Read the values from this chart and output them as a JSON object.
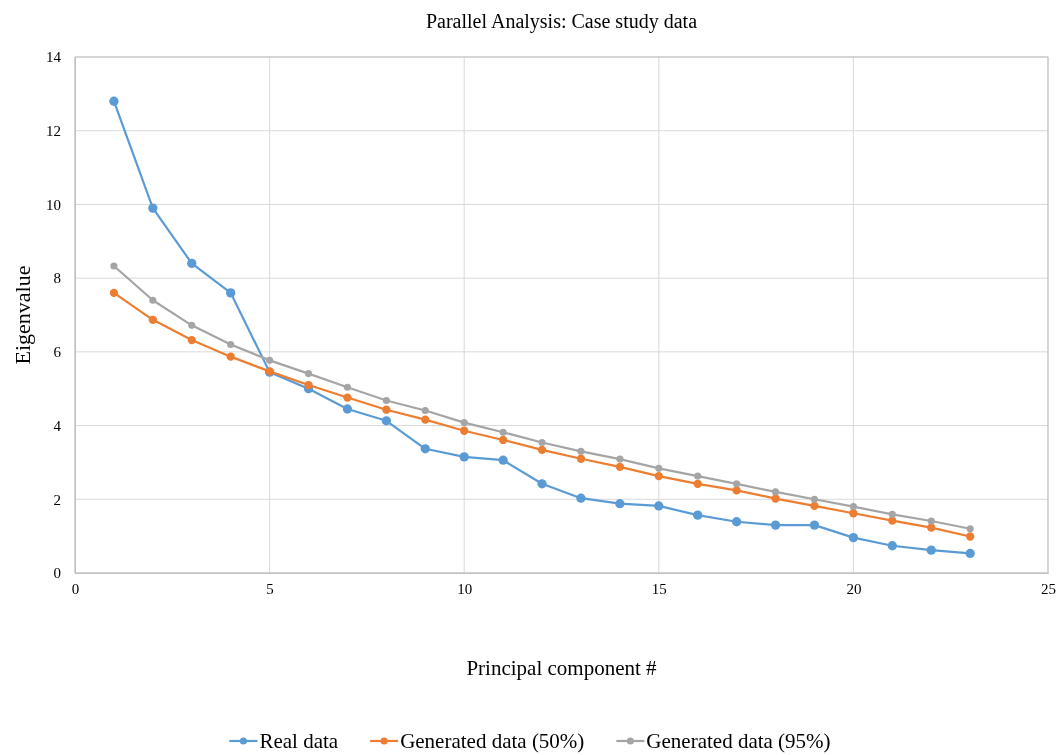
{
  "chart_data": {
    "type": "line",
    "title": "Parallel Analysis: Case study data",
    "xlabel": "Principal component #",
    "ylabel": "Eigenvalue",
    "x": [
      1,
      2,
      3,
      4,
      5,
      6,
      7,
      8,
      9,
      10,
      11,
      12,
      13,
      14,
      15,
      16,
      17,
      18,
      19,
      20,
      21,
      22,
      23
    ],
    "series": [
      {
        "name": "Real data",
        "color": "#5b9bd5",
        "values": [
          12.8,
          9.9,
          8.4,
          7.6,
          5.45,
          5.0,
          4.45,
          4.13,
          3.37,
          3.15,
          3.06,
          2.42,
          2.03,
          1.88,
          1.82,
          1.57,
          1.39,
          1.3,
          1.3,
          0.96,
          0.74,
          0.62,
          0.53
        ]
      },
      {
        "name": "Generated data (50%)",
        "color": "#ed7d31",
        "values": [
          7.6,
          6.87,
          6.32,
          5.87,
          5.47,
          5.1,
          4.76,
          4.43,
          4.16,
          3.86,
          3.61,
          3.34,
          3.1,
          2.88,
          2.63,
          2.42,
          2.24,
          2.02,
          1.82,
          1.62,
          1.42,
          1.23,
          0.99
        ]
      },
      {
        "name": "Generated data (95%)",
        "color": "#a5a5a5",
        "values": [
          8.33,
          7.4,
          6.72,
          6.2,
          5.77,
          5.41,
          5.04,
          4.68,
          4.41,
          4.08,
          3.82,
          3.54,
          3.3,
          3.09,
          2.84,
          2.63,
          2.42,
          2.2,
          2.0,
          1.8,
          1.59,
          1.41,
          1.2
        ]
      }
    ],
    "xlim": [
      0,
      25
    ],
    "xticks": [
      0,
      5,
      10,
      15,
      20,
      25
    ],
    "ylim": [
      0,
      14
    ],
    "yticks": [
      0,
      2,
      4,
      6,
      8,
      10,
      12,
      14
    ],
    "grid": true,
    "legend": "bottom",
    "marker": "circle",
    "line_style": "solid"
  }
}
